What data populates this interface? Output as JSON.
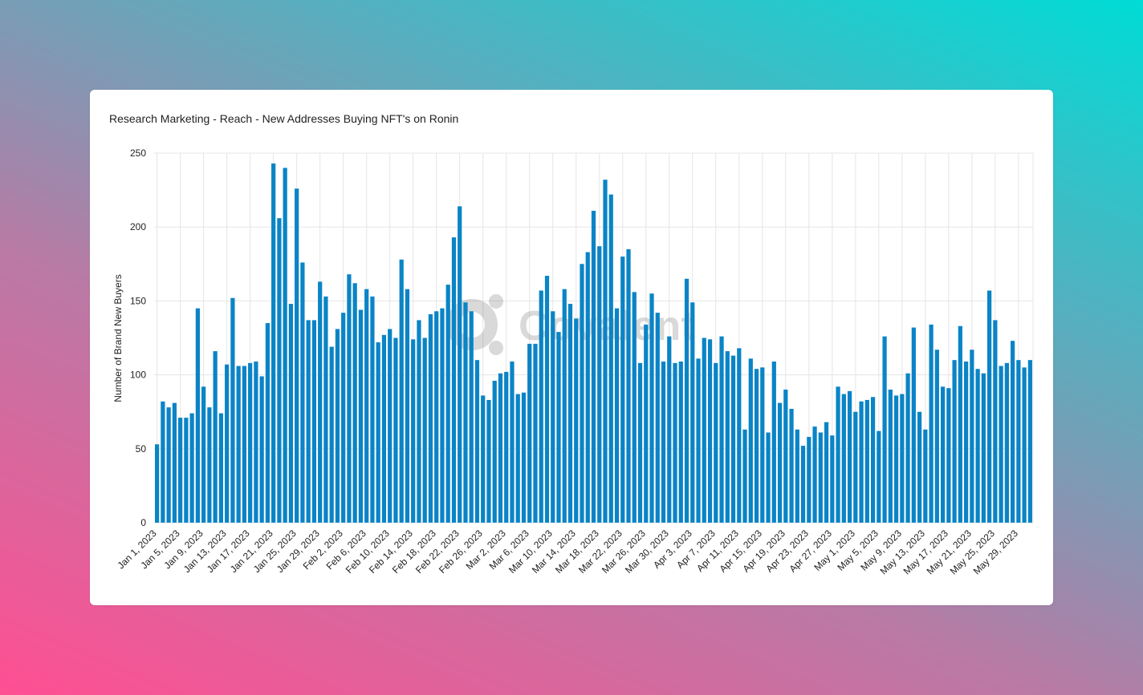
{
  "card": {
    "title": "Research Marketing - Reach - New Addresses Buying NFT's on Ronin"
  },
  "watermark": {
    "text": "Covalent"
  },
  "colors": {
    "bar": "#0a84c6",
    "grid": "#e5e5e5",
    "axis_text": "#222222"
  },
  "chart_data": {
    "type": "bar",
    "title": "",
    "ylabel": "Number of Brand New Buyers",
    "xlabel": "",
    "ylim": [
      0,
      250
    ],
    "yticks": [
      0,
      50,
      100,
      150,
      200,
      250
    ],
    "grid": true,
    "categories": [
      "Jan 1, 2023",
      "Jan 2, 2023",
      "Jan 3, 2023",
      "Jan 4, 2023",
      "Jan 5, 2023",
      "Jan 6, 2023",
      "Jan 7, 2023",
      "Jan 8, 2023",
      "Jan 9, 2023",
      "Jan 10, 2023",
      "Jan 11, 2023",
      "Jan 12, 2023",
      "Jan 13, 2023",
      "Jan 14, 2023",
      "Jan 15, 2023",
      "Jan 16, 2023",
      "Jan 17, 2023",
      "Jan 18, 2023",
      "Jan 19, 2023",
      "Jan 20, 2023",
      "Jan 21, 2023",
      "Jan 22, 2023",
      "Jan 23, 2023",
      "Jan 24, 2023",
      "Jan 25, 2023",
      "Jan 26, 2023",
      "Jan 27, 2023",
      "Jan 28, 2023",
      "Jan 29, 2023",
      "Jan 30, 2023",
      "Jan 31, 2023",
      "Feb 1, 2023",
      "Feb 2, 2023",
      "Feb 3, 2023",
      "Feb 4, 2023",
      "Feb 5, 2023",
      "Feb 6, 2023",
      "Feb 7, 2023",
      "Feb 8, 2023",
      "Feb 9, 2023",
      "Feb 10, 2023",
      "Feb 11, 2023",
      "Feb 12, 2023",
      "Feb 13, 2023",
      "Feb 14, 2023",
      "Feb 15, 2023",
      "Feb 16, 2023",
      "Feb 17, 2023",
      "Feb 18, 2023",
      "Feb 19, 2023",
      "Feb 20, 2023",
      "Feb 21, 2023",
      "Feb 22, 2023",
      "Feb 23, 2023",
      "Feb 24, 2023",
      "Feb 25, 2023",
      "Feb 26, 2023",
      "Feb 27, 2023",
      "Feb 28, 2023",
      "Mar 1, 2023",
      "Mar 2, 2023",
      "Mar 3, 2023",
      "Mar 4, 2023",
      "Mar 5, 2023",
      "Mar 6, 2023",
      "Mar 7, 2023",
      "Mar 8, 2023",
      "Mar 9, 2023",
      "Mar 10, 2023",
      "Mar 11, 2023",
      "Mar 12, 2023",
      "Mar 13, 2023",
      "Mar 14, 2023",
      "Mar 15, 2023",
      "Mar 16, 2023",
      "Mar 17, 2023",
      "Mar 18, 2023",
      "Mar 19, 2023",
      "Mar 20, 2023",
      "Mar 21, 2023",
      "Mar 22, 2023",
      "Mar 23, 2023",
      "Mar 24, 2023",
      "Mar 25, 2023",
      "Mar 26, 2023",
      "Mar 27, 2023",
      "Mar 28, 2023",
      "Mar 29, 2023",
      "Mar 30, 2023",
      "Mar 31, 2023",
      "Apr 1, 2023",
      "Apr 2, 2023",
      "Apr 3, 2023",
      "Apr 4, 2023",
      "Apr 5, 2023",
      "Apr 6, 2023",
      "Apr 7, 2023",
      "Apr 8, 2023",
      "Apr 9, 2023",
      "Apr 10, 2023",
      "Apr 11, 2023",
      "Apr 12, 2023",
      "Apr 13, 2023",
      "Apr 14, 2023",
      "Apr 15, 2023",
      "Apr 16, 2023",
      "Apr 17, 2023",
      "Apr 18, 2023",
      "Apr 19, 2023",
      "Apr 20, 2023",
      "Apr 21, 2023",
      "Apr 22, 2023",
      "Apr 23, 2023",
      "Apr 24, 2023",
      "Apr 25, 2023",
      "Apr 26, 2023",
      "Apr 27, 2023",
      "Apr 28, 2023",
      "Apr 29, 2023",
      "Apr 30, 2023",
      "May 1, 2023",
      "May 2, 2023",
      "May 3, 2023",
      "May 4, 2023",
      "May 5, 2023",
      "May 6, 2023",
      "May 7, 2023",
      "May 8, 2023",
      "May 9, 2023",
      "May 10, 2023",
      "May 11, 2023",
      "May 12, 2023",
      "May 13, 2023",
      "May 14, 2023",
      "May 15, 2023",
      "May 16, 2023",
      "May 17, 2023",
      "May 18, 2023",
      "May 19, 2023",
      "May 20, 2023",
      "May 21, 2023",
      "May 22, 2023",
      "May 23, 2023",
      "May 24, 2023",
      "May 25, 2023",
      "May 26, 2023",
      "May 27, 2023",
      "May 28, 2023",
      "May 29, 2023",
      "May 30, 2023",
      "May 31, 2023"
    ],
    "values": [
      53,
      82,
      78,
      81,
      71,
      71,
      74,
      145,
      92,
      78,
      116,
      74,
      107,
      152,
      106,
      106,
      108,
      109,
      99,
      135,
      243,
      206,
      240,
      148,
      226,
      176,
      137,
      137,
      163,
      153,
      119,
      131,
      142,
      168,
      162,
      144,
      158,
      153,
      122,
      127,
      131,
      125,
      178,
      158,
      124,
      137,
      125,
      141,
      143,
      145,
      161,
      193,
      214,
      149,
      143,
      110,
      86,
      83,
      96,
      101,
      102,
      109,
      87,
      88,
      121,
      121,
      157,
      167,
      143,
      129,
      158,
      148,
      138,
      175,
      183,
      211,
      187,
      232,
      222,
      145,
      180,
      185,
      156,
      108,
      134,
      155,
      142,
      109,
      126,
      108,
      109,
      165,
      149,
      111,
      125,
      124,
      108,
      126,
      116,
      113,
      118,
      63,
      111,
      104,
      105,
      61,
      109,
      81,
      90,
      77,
      63,
      52,
      58,
      65,
      61,
      68,
      59,
      92,
      87,
      89,
      75,
      82,
      83,
      85,
      62,
      126,
      90,
      86,
      87,
      101,
      132,
      75,
      63,
      134,
      117,
      92,
      91,
      110,
      133,
      109,
      117,
      104,
      101,
      157,
      137,
      106,
      108,
      123,
      110,
      105,
      110
    ],
    "xtick_labels": [
      "Jan 1, 2023",
      "Jan 5, 2023",
      "Jan 9, 2023",
      "Jan 13, 2023",
      "Jan 17, 2023",
      "Jan 21, 2023",
      "Jan 25, 2023",
      "Jan 29, 2023",
      "Feb 2, 2023",
      "Feb 6, 2023",
      "Feb 10, 2023",
      "Feb 14, 2023",
      "Feb 18, 2023",
      "Feb 22, 2023",
      "Feb 26, 2023",
      "Mar 2, 2023",
      "Mar 6, 2023",
      "Mar 10, 2023",
      "Mar 14, 2023",
      "Mar 18, 2023",
      "Mar 22, 2023",
      "Mar 26, 2023",
      "Mar 30, 2023",
      "Apr 3, 2023",
      "Apr 7, 2023",
      "Apr 11, 2023",
      "Apr 15, 2023",
      "Apr 19, 2023",
      "Apr 23, 2023",
      "Apr 27, 2023",
      "May 1, 2023",
      "May 5, 2023",
      "May 9, 2023",
      "May 13, 2023",
      "May 17, 2023",
      "May 21, 2023",
      "May 25, 2023",
      "May 29, 2023"
    ]
  }
}
